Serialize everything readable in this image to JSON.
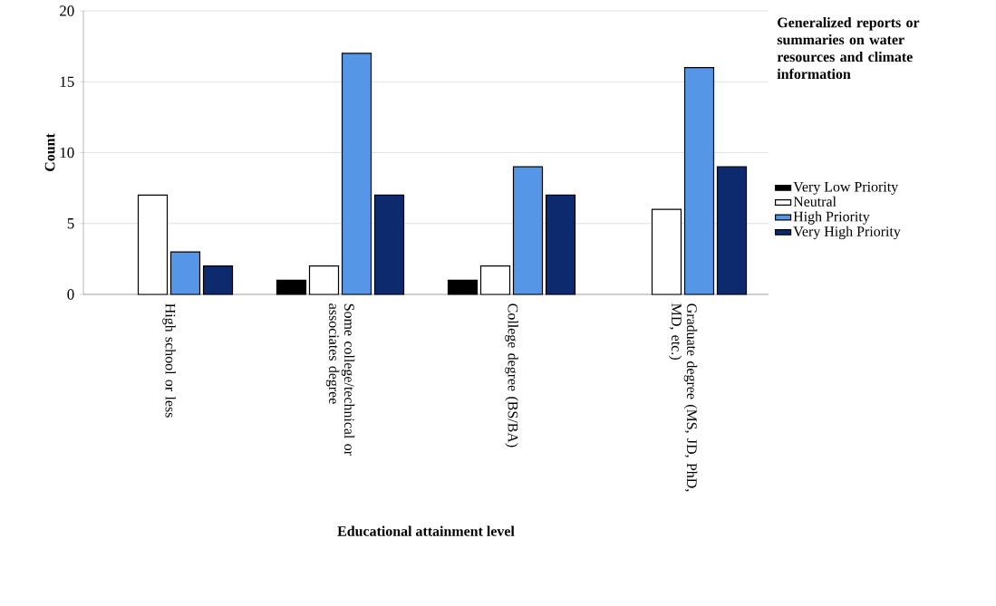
{
  "chart_data": {
    "type": "bar",
    "xlabel": "Educational attainment level",
    "ylabel": "Count",
    "legend_title": "Generalized reports or summaries on water resources and climate information",
    "categories": [
      "High school or less",
      "Some college/technical or associates degree",
      "College degree (BS/BA)",
      "Graduate degree (MS, JD, PhD, MD, etc.)"
    ],
    "series": [
      {
        "name": "Very Low Priority",
        "color": "#000000",
        "values": [
          null,
          1,
          1,
          null
        ]
      },
      {
        "name": "Neutral",
        "color": "#ffffff",
        "values": [
          7,
          2,
          2,
          6
        ]
      },
      {
        "name": "High Priority",
        "color": "#5596e6",
        "values": [
          3,
          17,
          9,
          16
        ]
      },
      {
        "name": "Very High Priority",
        "color": "#0d2a6e",
        "values": [
          2,
          7,
          7,
          9
        ]
      }
    ],
    "ylim": [
      0,
      20
    ],
    "yticks": [
      0,
      5,
      10,
      15,
      20
    ],
    "grid": "y",
    "legend": "right"
  }
}
